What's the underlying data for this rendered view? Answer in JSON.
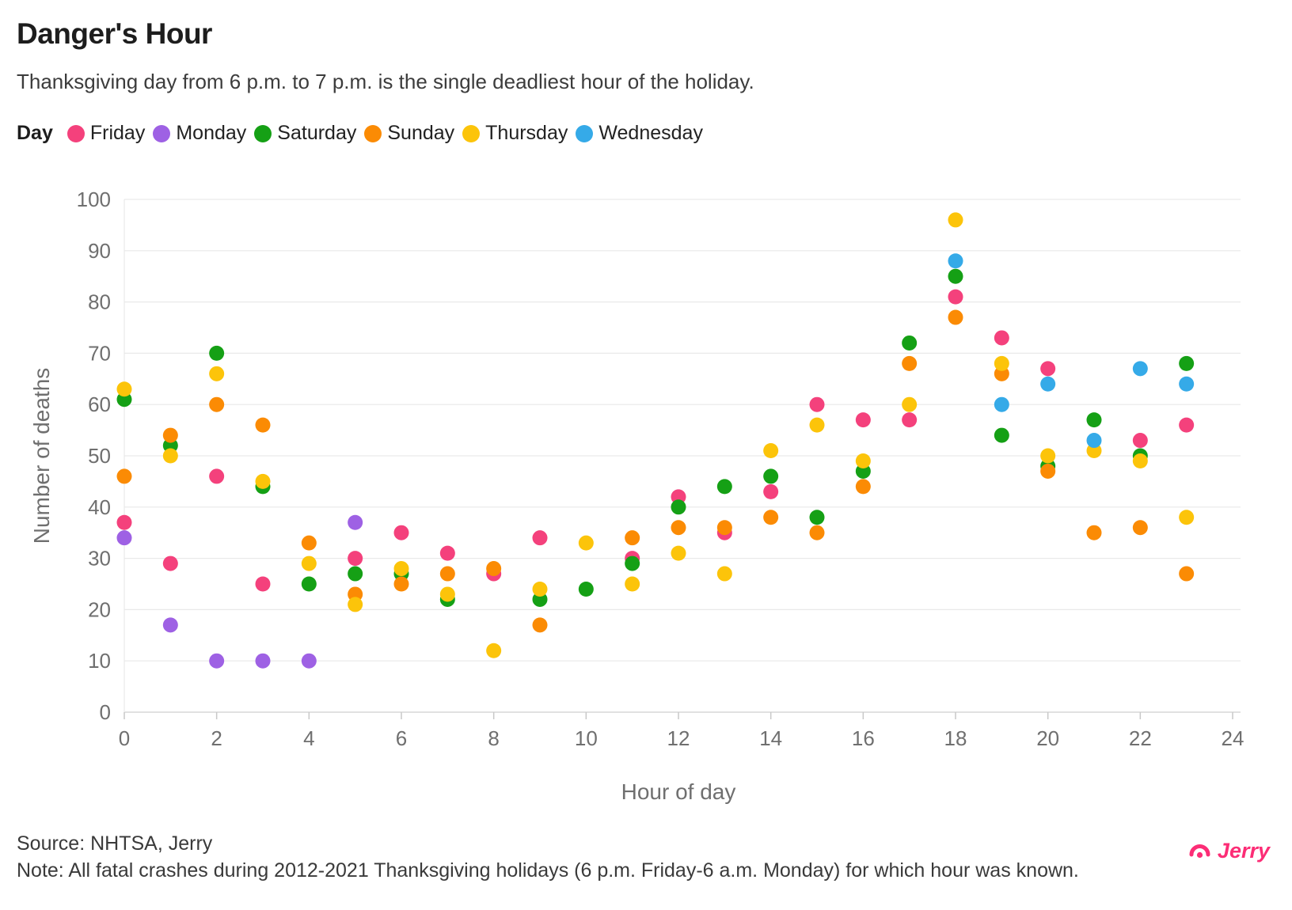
{
  "header": {
    "title": "Danger's Hour",
    "subtitle": "Thanksgiving day from 6 p.m. to 7 p.m. is the single deadliest hour of the holiday."
  },
  "legend": {
    "label": "Day",
    "items": [
      {
        "label": "Friday",
        "color": "#F4417C"
      },
      {
        "label": "Monday",
        "color": "#9E61E4"
      },
      {
        "label": "Saturday",
        "color": "#15A015"
      },
      {
        "label": "Sunday",
        "color": "#FB8B04"
      },
      {
        "label": "Thursday",
        "color": "#FCC40A"
      },
      {
        "label": "Wednesday",
        "color": "#35AAE8"
      }
    ]
  },
  "chart_data": {
    "type": "scatter",
    "title": "Danger's Hour",
    "xlabel": "Hour of day",
    "ylabel": "Number of deaths",
    "xlim": [
      0,
      24
    ],
    "ylim": [
      0,
      100
    ],
    "x_ticks": [
      0,
      2,
      4,
      6,
      8,
      10,
      12,
      14,
      16,
      18,
      20,
      22,
      24
    ],
    "y_ticks": [
      0,
      10,
      20,
      30,
      40,
      50,
      60,
      70,
      80,
      90,
      100
    ],
    "grid": true,
    "legend_position": "top",
    "series": [
      {
        "name": "Friday",
        "color": "#F4417C",
        "points": [
          [
            0,
            37
          ],
          [
            1,
            29
          ],
          [
            2,
            46
          ],
          [
            3,
            25
          ],
          [
            5,
            30
          ],
          [
            6,
            35
          ],
          [
            7,
            31
          ],
          [
            8,
            27
          ],
          [
            9,
            34
          ],
          [
            11,
            30
          ],
          [
            12,
            42
          ],
          [
            13,
            35
          ],
          [
            14,
            43
          ],
          [
            15,
            60
          ],
          [
            16,
            57
          ],
          [
            17,
            57
          ],
          [
            18,
            81
          ],
          [
            19,
            73
          ],
          [
            20,
            67
          ],
          [
            22,
            53
          ],
          [
            23,
            56
          ]
        ]
      },
      {
        "name": "Monday",
        "color": "#9E61E4",
        "points": [
          [
            0,
            34
          ],
          [
            1,
            17
          ],
          [
            2,
            10
          ],
          [
            3,
            10
          ],
          [
            4,
            10
          ],
          [
            5,
            37
          ]
        ]
      },
      {
        "name": "Saturday",
        "color": "#15A015",
        "points": [
          [
            0,
            61
          ],
          [
            1,
            52
          ],
          [
            2,
            70
          ],
          [
            3,
            44
          ],
          [
            4,
            25
          ],
          [
            5,
            27
          ],
          [
            6,
            27
          ],
          [
            7,
            22
          ],
          [
            9,
            22
          ],
          [
            10,
            24
          ],
          [
            11,
            29
          ],
          [
            12,
            40
          ],
          [
            13,
            44
          ],
          [
            14,
            46
          ],
          [
            15,
            38
          ],
          [
            16,
            47
          ],
          [
            17,
            72
          ],
          [
            18,
            85
          ],
          [
            19,
            54
          ],
          [
            20,
            48
          ],
          [
            21,
            57
          ],
          [
            22,
            50
          ],
          [
            23,
            68
          ]
        ]
      },
      {
        "name": "Sunday",
        "color": "#FB8B04",
        "points": [
          [
            0,
            46
          ],
          [
            1,
            54
          ],
          [
            2,
            60
          ],
          [
            3,
            56
          ],
          [
            4,
            33
          ],
          [
            5,
            23
          ],
          [
            6,
            25
          ],
          [
            7,
            27
          ],
          [
            8,
            28
          ],
          [
            9,
            17
          ],
          [
            11,
            34
          ],
          [
            12,
            36
          ],
          [
            13,
            36
          ],
          [
            14,
            38
          ],
          [
            15,
            35
          ],
          [
            16,
            44
          ],
          [
            17,
            68
          ],
          [
            18,
            77
          ],
          [
            19,
            66
          ],
          [
            20,
            47
          ],
          [
            21,
            35
          ],
          [
            22,
            36
          ],
          [
            23,
            27
          ]
        ]
      },
      {
        "name": "Thursday",
        "color": "#FCC40A",
        "points": [
          [
            0,
            63
          ],
          [
            1,
            50
          ],
          [
            2,
            66
          ],
          [
            3,
            45
          ],
          [
            4,
            29
          ],
          [
            5,
            21
          ],
          [
            6,
            28
          ],
          [
            7,
            23
          ],
          [
            8,
            12
          ],
          [
            9,
            24
          ],
          [
            10,
            33
          ],
          [
            11,
            25
          ],
          [
            12,
            31
          ],
          [
            13,
            27
          ],
          [
            14,
            51
          ],
          [
            15,
            56
          ],
          [
            16,
            49
          ],
          [
            17,
            60
          ],
          [
            18,
            96
          ],
          [
            19,
            68
          ],
          [
            20,
            50
          ],
          [
            21,
            51
          ],
          [
            22,
            49
          ],
          [
            23,
            38
          ]
        ]
      },
      {
        "name": "Wednesday",
        "color": "#35AAE8",
        "points": [
          [
            18,
            88
          ],
          [
            19,
            60
          ],
          [
            20,
            64
          ],
          [
            21,
            53
          ],
          [
            22,
            67
          ],
          [
            23,
            64
          ]
        ]
      }
    ]
  },
  "footer": {
    "source": "Source: NHTSA, Jerry",
    "note": "Note: All fatal crashes during 2012-2021 Thanksgiving holidays (6 p.m. Friday-6 a.m. Monday) for which hour was known.",
    "brand": "Jerry",
    "brand_color": "#FC2D76"
  }
}
